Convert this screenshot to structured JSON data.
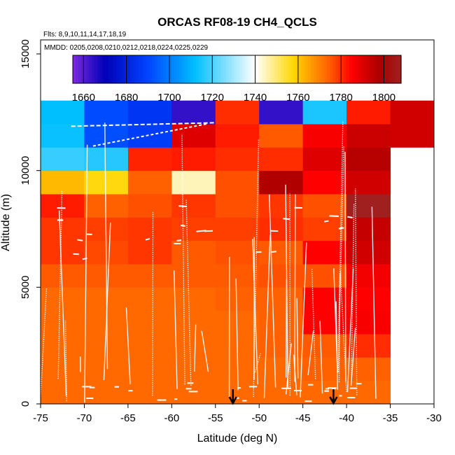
{
  "chart_data": {
    "type": "heatmap",
    "title": "ORCAS RF08-19 CH4_QCLS",
    "subtitle_flights": "Flts: 8,9,10,11,14,17,18,19",
    "subtitle_dates": "MMDD: 0205,0208,0210,0212,0218,0224,0225,0229",
    "xlabel": "Latitude (deg N)",
    "ylabel": "Altitude (m)",
    "xlim": [
      -75,
      -30
    ],
    "ylim": [
      0,
      15600
    ],
    "x_ticks": [
      -75,
      -70,
      -65,
      -60,
      -55,
      -50,
      -45,
      -40,
      -35,
      -30
    ],
    "y_ticks": [
      0,
      5000,
      10000,
      15000
    ],
    "colorbar": {
      "min": 1655,
      "max": 1808,
      "ticks": [
        1660,
        1680,
        1700,
        1720,
        1740,
        1760,
        1780,
        1800
      ],
      "colors": [
        "#7f2be0",
        "#0000b8",
        "#0044ff",
        "#00bfff",
        "#ffffff",
        "#ffd700",
        "#ff5a00",
        "#ff0000",
        "#aa0000",
        "#a02020"
      ],
      "color_stops": [
        1655,
        1670,
        1690,
        1712,
        1740,
        1758,
        1775,
        1785,
        1798,
        1808
      ]
    },
    "lat_bins": [
      -75,
      -70,
      -65,
      -60,
      -55,
      -50,
      -45,
      -40,
      -35,
      -30
    ],
    "alt_bins": [
      0,
      1000,
      2000,
      3000,
      4000,
      5000,
      6000,
      7000,
      8000,
      9000,
      10000,
      11000,
      12000
    ],
    "grid_values": [
      [
        1773,
        1773,
        1773,
        1773,
        1773,
        1773,
        1773,
        1773,
        null
      ],
      [
        1773,
        1773,
        1773,
        1773,
        1773,
        1773,
        1774,
        1774,
        null
      ],
      [
        1773,
        1773,
        1773,
        1773,
        1773,
        1774,
        1775,
        1780,
        null
      ],
      [
        1773,
        1773,
        1773,
        1773,
        1773,
        1774,
        1785,
        1786,
        null
      ],
      [
        1773,
        1773,
        1773,
        1773,
        1774,
        1774,
        1785,
        1785,
        null
      ],
      [
        1775,
        1775,
        1775,
        1775,
        1775,
        1776,
        1776,
        1787,
        null
      ],
      [
        1779,
        1777,
        1779,
        1775,
        1776,
        1775,
        1785,
        1792,
        null
      ],
      [
        1779,
        1778,
        1779,
        1778,
        1778,
        1780,
        1778,
        1794,
        null
      ],
      [
        1782,
        1774,
        1776,
        1779,
        1776,
        1779,
        1776,
        1808,
        null
      ],
      [
        1762,
        1757,
        1774,
        1745,
        1776,
        1797,
        1785,
        1792,
        null
      ],
      [
        1718,
        1716,
        1781,
        1782,
        1780,
        1780,
        1790,
        1796,
        null
      ],
      [
        1713,
        1692,
        1688,
        1790,
        1782,
        1775,
        1786,
        1793,
        1792
      ],
      [
        1712,
        1691,
        1686,
        1664,
        1780,
        1664,
        1715,
        1782,
        1792
      ]
    ],
    "markers": [
      {
        "lat": -53.0,
        "label": "arrow"
      },
      {
        "lat": -41.5,
        "label": "arrow"
      }
    ]
  }
}
